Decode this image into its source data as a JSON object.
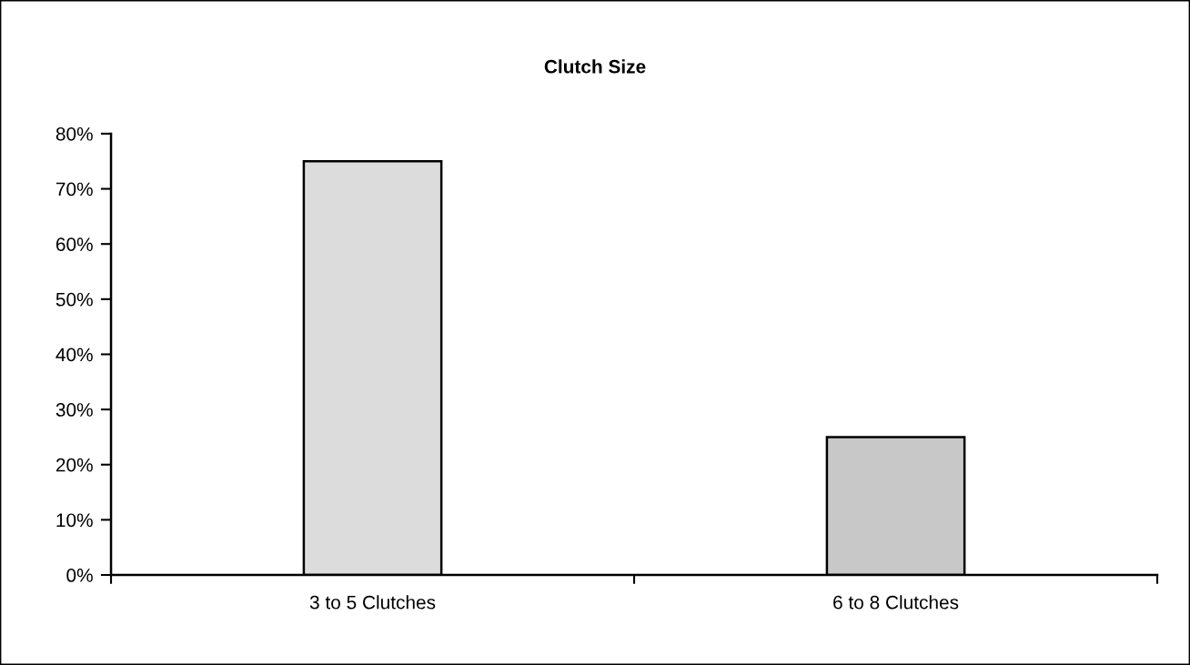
{
  "chart_data": {
    "type": "bar",
    "title": "Clutch Size",
    "categories": [
      "3 to 5 Clutches",
      "6 to 8 Clutches"
    ],
    "values": [
      75,
      25
    ],
    "colors": [
      "#dcdcdc",
      "#c8c8c8"
    ],
    "ylim": [
      0,
      80
    ],
    "yticks": [
      {
        "value": 0,
        "label": "0%"
      },
      {
        "value": 10,
        "label": "10%"
      },
      {
        "value": 20,
        "label": "20%"
      },
      {
        "value": 30,
        "label": "30%"
      },
      {
        "value": 40,
        "label": "40%"
      },
      {
        "value": 50,
        "label": "50%"
      },
      {
        "value": 60,
        "label": "60%"
      },
      {
        "value": 70,
        "label": "70%"
      },
      {
        "value": 80,
        "label": "80%"
      }
    ],
    "grid": false
  }
}
